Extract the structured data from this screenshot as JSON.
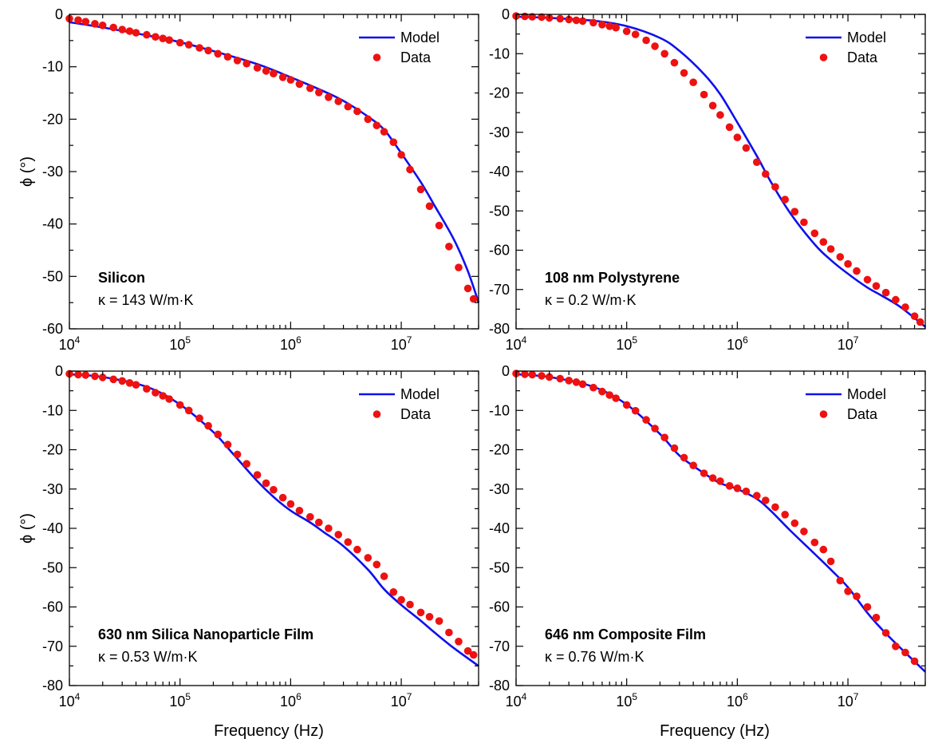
{
  "figure": {
    "shared_xlabel": "Frequency (Hz)",
    "shared_ylabel": "ϕ (°)",
    "legend": {
      "model_label": "Model",
      "data_label": "Data"
    },
    "colors": {
      "model": "#1010ee",
      "data": "#ee1111",
      "axis": "#000000"
    }
  },
  "chart_data": [
    {
      "type": "line",
      "title": "Silicon",
      "subtitle": "κ = 143 W/m·K",
      "xlabel": "",
      "ylabel": "ϕ (°)",
      "xscale": "log",
      "xlim": [
        10000,
        50000000
      ],
      "ylim": [
        -60,
        0
      ],
      "xticks": [
        10000,
        100000,
        1000000,
        10000000
      ],
      "xtick_labels": [
        [
          "10",
          "4"
        ],
        [
          "10",
          "5"
        ],
        [
          "10",
          "6"
        ],
        [
          "10",
          "7"
        ]
      ],
      "yticks": [
        0,
        -10,
        -20,
        -30,
        -40,
        -50,
        -60
      ],
      "legend_position": "top-right",
      "series": [
        {
          "name": "Model",
          "style": "line",
          "x": [
            10000,
            20000,
            50000,
            100000,
            200000,
            500000,
            1000000,
            2000000,
            3000000,
            5000000,
            7000000,
            10000000,
            15000000,
            20000000,
            30000000,
            40000000,
            50000000
          ],
          "y": [
            -1.5,
            -2.5,
            -4,
            -5.3,
            -7,
            -9.5,
            -12,
            -14.7,
            -16.5,
            -19.5,
            -22,
            -26.5,
            -32,
            -36.5,
            -43,
            -49,
            -55
          ]
        },
        {
          "name": "Data",
          "style": "scatter",
          "x": [
            10000,
            12000,
            14000,
            17000,
            20000,
            25000,
            30000,
            35000,
            40000,
            50000,
            60000,
            70000,
            80000,
            100000,
            120000,
            150000,
            180000,
            220000,
            270000,
            330000,
            400000,
            500000,
            600000,
            700000,
            850000,
            1000000,
            1200000,
            1500000,
            1800000,
            2200000,
            2700000,
            3300000,
            4000000,
            5000000,
            6000000,
            7000000,
            8500000,
            10000000,
            12000000,
            15000000,
            18000000,
            22000000,
            27000000,
            33000000,
            40000000,
            45000000
          ],
          "y": [
            -0.8,
            -1.1,
            -1.4,
            -1.8,
            -2.1,
            -2.5,
            -2.9,
            -3.2,
            -3.5,
            -3.9,
            -4.3,
            -4.6,
            -4.9,
            -5.4,
            -5.8,
            -6.4,
            -6.9,
            -7.5,
            -8.1,
            -8.8,
            -9.4,
            -10.2,
            -10.8,
            -11.3,
            -12,
            -12.5,
            -13.3,
            -14.1,
            -14.9,
            -15.8,
            -16.6,
            -17.6,
            -18.5,
            -20,
            -21.2,
            -22.4,
            -24.4,
            -26.8,
            -29.6,
            -33.4,
            -36.6,
            -40.3,
            -44.3,
            -48.3,
            -52.3,
            -54.3
          ]
        }
      ]
    },
    {
      "type": "line",
      "title": "108 nm Polystyrene",
      "subtitle": "κ = 0.2 W/m·K",
      "xlabel": "",
      "ylabel": "",
      "xscale": "log",
      "xlim": [
        10000,
        50000000
      ],
      "ylim": [
        -80,
        0
      ],
      "xticks": [
        10000,
        100000,
        1000000,
        10000000
      ],
      "xtick_labels": [
        [
          "10",
          "4"
        ],
        [
          "10",
          "5"
        ],
        [
          "10",
          "6"
        ],
        [
          "10",
          "7"
        ]
      ],
      "yticks": [
        0,
        -10,
        -20,
        -30,
        -40,
        -50,
        -60,
        -70,
        -80
      ],
      "legend_position": "top-right",
      "series": [
        {
          "name": "Model",
          "style": "line",
          "x": [
            10000,
            20000,
            50000,
            100000,
            200000,
            300000,
            500000,
            700000,
            1000000,
            1500000,
            2000000,
            3000000,
            5000000,
            7000000,
            10000000,
            15000000,
            20000000,
            30000000,
            50000000
          ],
          "y": [
            -0.6,
            -0.9,
            -1.6,
            -3,
            -6,
            -9.3,
            -15.2,
            -20.3,
            -27.5,
            -36,
            -42.5,
            -50.5,
            -58.5,
            -62.5,
            -66,
            -69.5,
            -71.5,
            -74.5,
            -79.5
          ]
        },
        {
          "name": "Data",
          "style": "scatter",
          "x": [
            10000,
            12000,
            14000,
            17000,
            20000,
            25000,
            30000,
            35000,
            40000,
            50000,
            60000,
            70000,
            80000,
            100000,
            120000,
            150000,
            180000,
            220000,
            270000,
            330000,
            400000,
            500000,
            600000,
            700000,
            850000,
            1000000,
            1200000,
            1500000,
            1800000,
            2200000,
            2700000,
            3300000,
            4000000,
            5000000,
            6000000,
            7000000,
            8500000,
            10000000,
            12000000,
            15000000,
            18000000,
            22000000,
            27000000,
            33000000,
            40000000,
            45000000
          ],
          "y": [
            -0.4,
            -0.5,
            -0.6,
            -0.7,
            -0.9,
            -1.1,
            -1.3,
            -1.5,
            -1.7,
            -2.1,
            -2.6,
            -3,
            -3.4,
            -4.3,
            -5.1,
            -6.6,
            -8.1,
            -10,
            -12.3,
            -14.9,
            -17.3,
            -20.4,
            -23.2,
            -25.6,
            -28.7,
            -31.3,
            -34,
            -37.6,
            -40.6,
            -43.9,
            -47.1,
            -50.2,
            -52.9,
            -55.7,
            -57.9,
            -59.7,
            -61.7,
            -63.5,
            -65.3,
            -67.5,
            -69.1,
            -70.8,
            -72.6,
            -74.5,
            -76.8,
            -78.3
          ]
        }
      ]
    },
    {
      "type": "line",
      "title": "630 nm Silica Nanoparticle Film",
      "subtitle": "κ = 0.53 W/m·K",
      "xlabel": "Frequency (Hz)",
      "ylabel": "ϕ (°)",
      "xscale": "log",
      "xlim": [
        10000,
        50000000
      ],
      "ylim": [
        -80,
        0
      ],
      "xticks": [
        10000,
        100000,
        1000000,
        10000000
      ],
      "xtick_labels": [
        [
          "10",
          "4"
        ],
        [
          "10",
          "5"
        ],
        [
          "10",
          "6"
        ],
        [
          "10",
          "7"
        ]
      ],
      "yticks": [
        0,
        -10,
        -20,
        -30,
        -40,
        -50,
        -60,
        -70,
        -80
      ],
      "legend_position": "top-right",
      "series": [
        {
          "name": "Model",
          "style": "line",
          "x": [
            10000,
            20000,
            50000,
            100000,
            200000,
            300000,
            500000,
            700000,
            1000000,
            1500000,
            2000000,
            3000000,
            5000000,
            7000000,
            10000000,
            15000000,
            20000000,
            30000000,
            50000000
          ],
          "y": [
            -0.8,
            -1.5,
            -4,
            -8.5,
            -15.5,
            -21,
            -28,
            -32,
            -35.5,
            -38.5,
            -41,
            -44.5,
            -50.5,
            -55.5,
            -59.5,
            -63.5,
            -66.5,
            -70.5,
            -75
          ]
        },
        {
          "name": "Data",
          "style": "scatter",
          "x": [
            10000,
            12000,
            14000,
            17000,
            20000,
            25000,
            30000,
            35000,
            40000,
            50000,
            60000,
            70000,
            80000,
            100000,
            120000,
            150000,
            180000,
            220000,
            270000,
            330000,
            400000,
            500000,
            600000,
            700000,
            850000,
            1000000,
            1200000,
            1500000,
            1800000,
            2200000,
            2700000,
            3300000,
            4000000,
            5000000,
            6000000,
            7000000,
            8500000,
            10000000,
            12000000,
            15000000,
            18000000,
            22000000,
            27000000,
            33000000,
            40000000,
            45000000
          ],
          "y": [
            -0.7,
            -0.9,
            -1,
            -1.3,
            -1.6,
            -2.1,
            -2.5,
            -3,
            -3.5,
            -4.5,
            -5.5,
            -6.3,
            -7.1,
            -8.6,
            -10,
            -12,
            -13.9,
            -16.1,
            -18.7,
            -21.2,
            -23.6,
            -26.4,
            -28.5,
            -30.2,
            -32.2,
            -33.8,
            -35.5,
            -37.1,
            -38.5,
            -40,
            -41.6,
            -43.5,
            -45.4,
            -47.5,
            -49.2,
            -52.2,
            -56.2,
            -58.2,
            -59.4,
            -61.4,
            -62.5,
            -63.6,
            -66.5,
            -68.8,
            -71.2,
            -72.2
          ]
        }
      ]
    },
    {
      "type": "line",
      "title": "646 nm Composite Film",
      "subtitle": "κ = 0.76 W/m·K",
      "xlabel": "Frequency (Hz)",
      "ylabel": "",
      "xscale": "log",
      "xlim": [
        10000,
        50000000
      ],
      "ylim": [
        -80,
        0
      ],
      "xticks": [
        10000,
        100000,
        1000000,
        10000000
      ],
      "xtick_labels": [
        [
          "10",
          "4"
        ],
        [
          "10",
          "5"
        ],
        [
          "10",
          "6"
        ],
        [
          "10",
          "7"
        ]
      ],
      "yticks": [
        0,
        -10,
        -20,
        -30,
        -40,
        -50,
        -60,
        -70,
        -80
      ],
      "legend_position": "top-right",
      "series": [
        {
          "name": "Model",
          "style": "line",
          "x": [
            10000,
            20000,
            50000,
            100000,
            200000,
            300000,
            500000,
            700000,
            1000000,
            1500000,
            2000000,
            3000000,
            5000000,
            7000000,
            10000000,
            15000000,
            20000000,
            30000000,
            50000000
          ],
          "y": [
            -0.8,
            -1.5,
            -4,
            -8.5,
            -16,
            -21.5,
            -26,
            -28.5,
            -30,
            -32.5,
            -35.5,
            -40.5,
            -46.5,
            -50.5,
            -55,
            -61.5,
            -65.5,
            -70.5,
            -76.5
          ]
        },
        {
          "name": "Data",
          "style": "scatter",
          "x": [
            10000,
            12000,
            14000,
            17000,
            20000,
            25000,
            30000,
            35000,
            40000,
            50000,
            60000,
            70000,
            80000,
            100000,
            120000,
            150000,
            180000,
            220000,
            270000,
            330000,
            400000,
            500000,
            600000,
            700000,
            850000,
            1000000,
            1200000,
            1500000,
            1800000,
            2200000,
            2700000,
            3300000,
            4000000,
            5000000,
            6000000,
            7000000,
            8500000,
            10000000,
            12000000,
            15000000,
            18000000,
            22000000,
            27000000,
            33000000,
            40000000
          ],
          "y": [
            -0.6,
            -0.8,
            -0.9,
            -1.2,
            -1.5,
            -1.9,
            -2.4,
            -2.8,
            -3.3,
            -4.2,
            -5.2,
            -6.1,
            -6.9,
            -8.6,
            -10.1,
            -12.4,
            -14.6,
            -16.9,
            -19.6,
            -22,
            -24,
            -26,
            -27.2,
            -28,
            -29.2,
            -29.8,
            -30.6,
            -31.7,
            -32.9,
            -34.6,
            -36.5,
            -38.7,
            -40.8,
            -43.6,
            -45.4,
            -48.4,
            -53.3,
            -56,
            -57.3,
            -60,
            -62.7,
            -66.6,
            -70,
            -71.6,
            -73.8
          ]
        }
      ]
    }
  ]
}
